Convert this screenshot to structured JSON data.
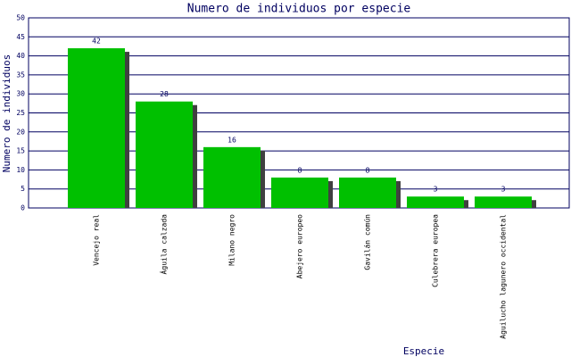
{
  "chart_data": {
    "type": "bar",
    "title": "Numero de individuos por especie",
    "x_label": "Especie",
    "y_label": "Numero de individuos",
    "categories": [
      "Vencejo real",
      "Águila calzada",
      "Milano negro",
      "Abejero europeo",
      "Gavilán común",
      "Culebrera europea",
      "Aguilucho lagunero occidental"
    ],
    "values": [
      42,
      28,
      16,
      8,
      8,
      3,
      3
    ],
    "color": "#00c000",
    "ylim": [
      0,
      50
    ],
    "yticks": [
      0,
      5,
      10,
      15,
      20,
      25,
      30,
      35,
      40,
      45,
      50
    ],
    "grid": true
  }
}
